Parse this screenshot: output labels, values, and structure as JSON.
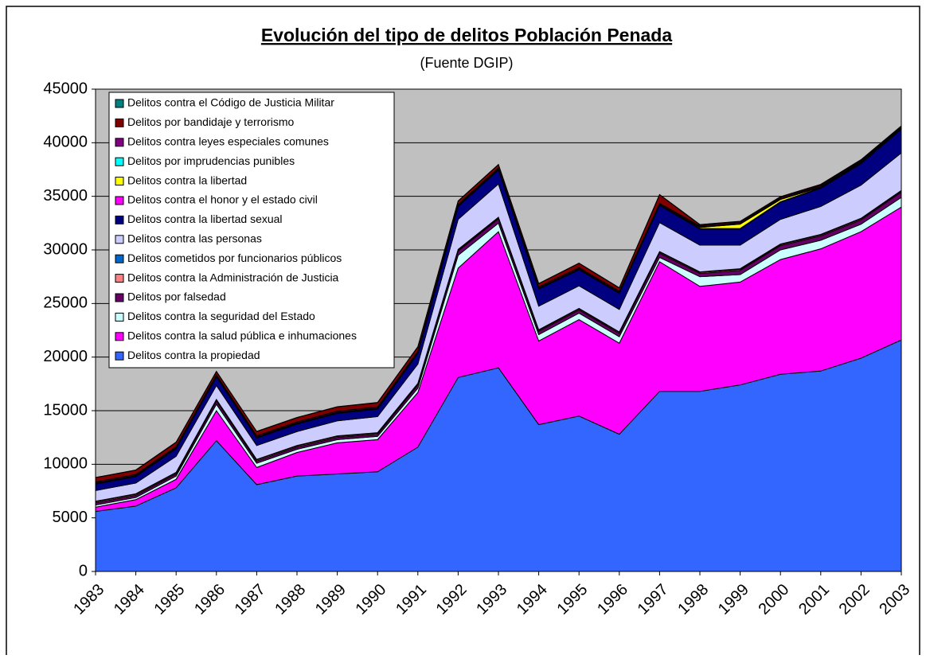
{
  "chart_data": {
    "type": "stacked_area",
    "title": "Evolución del tipo de delitos Población Penada",
    "subtitle": "(Fuente DGIP)",
    "categories": [
      "1983",
      "1984",
      "1985",
      "1986",
      "1987",
      "1988",
      "1989",
      "1990",
      "1991",
      "1992",
      "1993",
      "1994",
      "1995",
      "1996",
      "1997",
      "1998",
      "1999",
      "2000",
      "2001",
      "2002",
      "2003"
    ],
    "ylim": [
      0,
      45000
    ],
    "yticks": [
      0,
      5000,
      10000,
      15000,
      20000,
      25000,
      30000,
      35000,
      40000,
      45000
    ],
    "grid": true,
    "legend": "top-left",
    "series": [
      {
        "name": "Delitos contra la propiedad",
        "color": "#3366ff",
        "values": [
          5600,
          6100,
          7800,
          12200,
          8100,
          8900,
          9100,
          9300,
          11600,
          18100,
          19000,
          13700,
          14500,
          12800,
          16800,
          16800,
          17400,
          18400,
          18700,
          19900,
          21600
        ]
      },
      {
        "name": "Delitos contra la salud pública e inhumaciones",
        "color": "#ff00ff",
        "values": [
          400,
          600,
          800,
          2800,
          1600,
          2200,
          2900,
          3000,
          5100,
          10200,
          12700,
          7800,
          9000,
          8500,
          12100,
          9800,
          9600,
          10700,
          11400,
          11800,
          12400
        ]
      },
      {
        "name": "Delitos contra la seguridad del Estado",
        "color": "#ccffff",
        "values": [
          200,
          200,
          300,
          600,
          400,
          300,
          300,
          300,
          400,
          1200,
          800,
          600,
          600,
          600,
          400,
          900,
          700,
          900,
          800,
          700,
          900
        ]
      },
      {
        "name": "Delitos por falsedad",
        "color": "#660066",
        "values": [
          200,
          200,
          200,
          300,
          200,
          200,
          200,
          200,
          300,
          400,
          400,
          300,
          300,
          300,
          400,
          300,
          400,
          400,
          400,
          400,
          500
        ]
      },
      {
        "name": "Delitos contra la Administración de Justicia",
        "color": "#ff8080",
        "values": [
          100,
          100,
          100,
          100,
          100,
          100,
          100,
          100,
          100,
          100,
          100,
          100,
          100,
          100,
          100,
          100,
          100,
          100,
          100,
          100,
          100
        ]
      },
      {
        "name": "Delitos cometidos por funcionarios públicos",
        "color": "#0066cc",
        "values": [
          50,
          50,
          50,
          50,
          50,
          50,
          50,
          50,
          50,
          50,
          50,
          50,
          50,
          50,
          50,
          50,
          50,
          50,
          50,
          50,
          50
        ]
      },
      {
        "name": "Delitos contra las personas",
        "color": "#ccccff",
        "values": [
          1000,
          1000,
          1500,
          1300,
          1300,
          1300,
          1400,
          1500,
          1800,
          2800,
          3100,
          2200,
          2100,
          2100,
          2700,
          2500,
          2200,
          2300,
          2600,
          3100,
          3500
        ]
      },
      {
        "name": "Delitos contra la libertad sexual",
        "color": "#000080",
        "values": [
          600,
          600,
          700,
          800,
          700,
          700,
          700,
          700,
          1000,
          1200,
          1300,
          1600,
          1500,
          1500,
          1600,
          1500,
          1500,
          1600,
          1700,
          2000,
          2200
        ]
      },
      {
        "name": "Delitos contra el honor y el estado civil",
        "color": "#ff00ff",
        "values": [
          50,
          50,
          50,
          50,
          50,
          50,
          50,
          50,
          50,
          50,
          50,
          50,
          50,
          50,
          50,
          50,
          50,
          50,
          50,
          50,
          50
        ]
      },
      {
        "name": "Delitos contra la libertad",
        "color": "#ffff00",
        "values": [
          0,
          0,
          0,
          0,
          0,
          0,
          0,
          0,
          0,
          0,
          0,
          0,
          0,
          0,
          0,
          100,
          400,
          200,
          50,
          50,
          0
        ]
      },
      {
        "name": "Delitos por imprudencias punibles",
        "color": "#00ffff",
        "values": [
          50,
          50,
          50,
          50,
          50,
          50,
          50,
          50,
          50,
          50,
          50,
          50,
          50,
          50,
          50,
          50,
          50,
          50,
          50,
          50,
          50
        ]
      },
      {
        "name": "Delitos contra leyes especiales comunes",
        "color": "#800080",
        "values": [
          100,
          100,
          100,
          100,
          100,
          100,
          100,
          100,
          100,
          100,
          100,
          100,
          100,
          100,
          100,
          100,
          100,
          100,
          100,
          100,
          100
        ]
      },
      {
        "name": "Delitos por bandidaje y terrorismo",
        "color": "#800000",
        "values": [
          400,
          400,
          400,
          300,
          400,
          400,
          400,
          400,
          400,
          300,
          300,
          300,
          400,
          300,
          800,
          100,
          100,
          100,
          100,
          100,
          100
        ]
      },
      {
        "name": "Delitos contra el Código de Justicia Militar",
        "color": "#008080",
        "values": [
          20,
          20,
          20,
          20,
          20,
          20,
          20,
          20,
          20,
          20,
          20,
          20,
          20,
          20,
          20,
          20,
          20,
          20,
          20,
          20,
          20
        ]
      }
    ]
  }
}
